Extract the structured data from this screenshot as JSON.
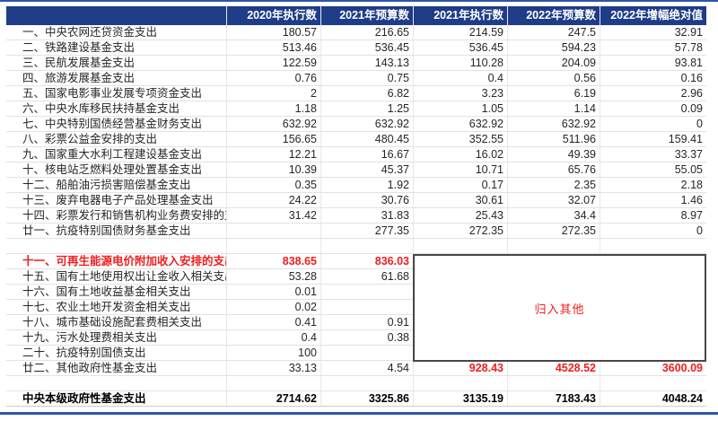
{
  "colors": {
    "header_bg": "#1e3c87",
    "accent_line": "#2e56a5",
    "highlight_red": "#ef1e1e",
    "gridline": "#e2e2e2"
  },
  "chart_data": {
    "type": "table",
    "columns": [
      "",
      "2020年执行数",
      "2021年预算数",
      "2021年执行数",
      "2022年预算数",
      "2022年增幅绝对值"
    ],
    "annotation": {
      "text": "归入其他"
    },
    "rows": [
      {
        "label": "一、中央农网还贷资金支出",
        "values": [
          "180.57",
          "216.65",
          "214.59",
          "247.5",
          "32.91"
        ],
        "style": "normal"
      },
      {
        "label": "二、铁路建设基金支出",
        "values": [
          "513.46",
          "536.45",
          "536.45",
          "594.23",
          "57.78"
        ],
        "style": "normal"
      },
      {
        "label": "三、民航发展基金支出",
        "values": [
          "122.59",
          "143.13",
          "110.28",
          "204.09",
          "93.81"
        ],
        "style": "normal"
      },
      {
        "label": "四、旅游发展基金支出",
        "values": [
          "0.76",
          "0.75",
          "0.4",
          "0.56",
          "0.16"
        ],
        "style": "normal"
      },
      {
        "label": "五、国家电影事业发展专项资金支出",
        "values": [
          "2",
          "6.82",
          "3.23",
          "6.19",
          "2.96"
        ],
        "style": "normal"
      },
      {
        "label": "六、中央水库移民扶持基金支出",
        "values": [
          "1.18",
          "1.25",
          "1.05",
          "1.14",
          "0.09"
        ],
        "style": "normal"
      },
      {
        "label": "七、中央特别国债经营基金财务支出",
        "values": [
          "632.92",
          "632.92",
          "632.92",
          "632.92",
          "0"
        ],
        "style": "normal"
      },
      {
        "label": "八、彩票公益金安排的支出",
        "values": [
          "156.65",
          "480.45",
          "352.55",
          "511.96",
          "159.41"
        ],
        "style": "normal"
      },
      {
        "label": "九、国家重大水利工程建设基金支出",
        "values": [
          "12.21",
          "16.67",
          "16.02",
          "49.39",
          "33.37"
        ],
        "style": "normal"
      },
      {
        "label": "十、核电站乏燃料处理处置基金支出",
        "values": [
          "10.39",
          "45.37",
          "10.71",
          "65.76",
          "55.05"
        ],
        "style": "normal"
      },
      {
        "label": "十二、船舶油污损害赔偿基金支出",
        "values": [
          "0.35",
          "1.92",
          "0.17",
          "2.35",
          "2.18"
        ],
        "style": "normal"
      },
      {
        "label": "十三、废弃电器电子产品处理基金支出",
        "values": [
          "24.22",
          "30.76",
          "30.61",
          "32.07",
          "1.46"
        ],
        "style": "normal"
      },
      {
        "label": "十四、彩票发行和销售机构业务费安排的支出",
        "values": [
          "31.42",
          "31.83",
          "25.43",
          "34.4",
          "8.97"
        ],
        "style": "normal"
      },
      {
        "label": "廿一、抗疫特别国债财务基金支出",
        "values": [
          "",
          "277.35",
          "272.35",
          "272.35",
          "0"
        ],
        "style": "normal"
      },
      {
        "label": "",
        "values": [
          "",
          "",
          "",
          "",
          ""
        ],
        "style": "blank"
      },
      {
        "label": "十一、可再生能源电价附加收入安排的支出",
        "values": [
          "838.65",
          "836.03",
          "",
          "",
          ""
        ],
        "style": "red"
      },
      {
        "label": "十五、国有土地使用权出让金收入相关支出",
        "values": [
          "53.28",
          "61.68",
          "",
          "",
          ""
        ],
        "style": "normal"
      },
      {
        "label": "十六、国有土地收益基金相关支出",
        "values": [
          "0.01",
          "",
          "",
          "",
          ""
        ],
        "style": "normal"
      },
      {
        "label": "十七、农业土地开发资金相关支出",
        "values": [
          "0.02",
          "",
          "",
          "",
          ""
        ],
        "style": "normal"
      },
      {
        "label": "十八、城市基础设施配套费相关支出",
        "values": [
          "0.41",
          "0.91",
          "",
          "",
          ""
        ],
        "style": "normal"
      },
      {
        "label": "十九、污水处理费相关支出",
        "values": [
          "0.4",
          "0.38",
          "",
          "",
          ""
        ],
        "style": "normal"
      },
      {
        "label": "二十、抗疫特别国债支出",
        "values": [
          "100",
          "",
          "",
          "",
          ""
        ],
        "style": "normal"
      },
      {
        "label": "廿二、其他政府性基金支出",
        "values": [
          "33.13",
          "4.54",
          "928.43",
          "4528.52",
          "3600.09"
        ],
        "style": "normal",
        "red_cells": [
          2,
          3,
          4
        ]
      },
      {
        "label": "",
        "values": [
          "",
          "",
          "",
          "",
          ""
        ],
        "style": "blank"
      },
      {
        "label": "中央本级政府性基金支出",
        "values": [
          "2714.62",
          "3325.86",
          "3135.19",
          "7183.43",
          "4048.24"
        ],
        "style": "total"
      }
    ]
  }
}
